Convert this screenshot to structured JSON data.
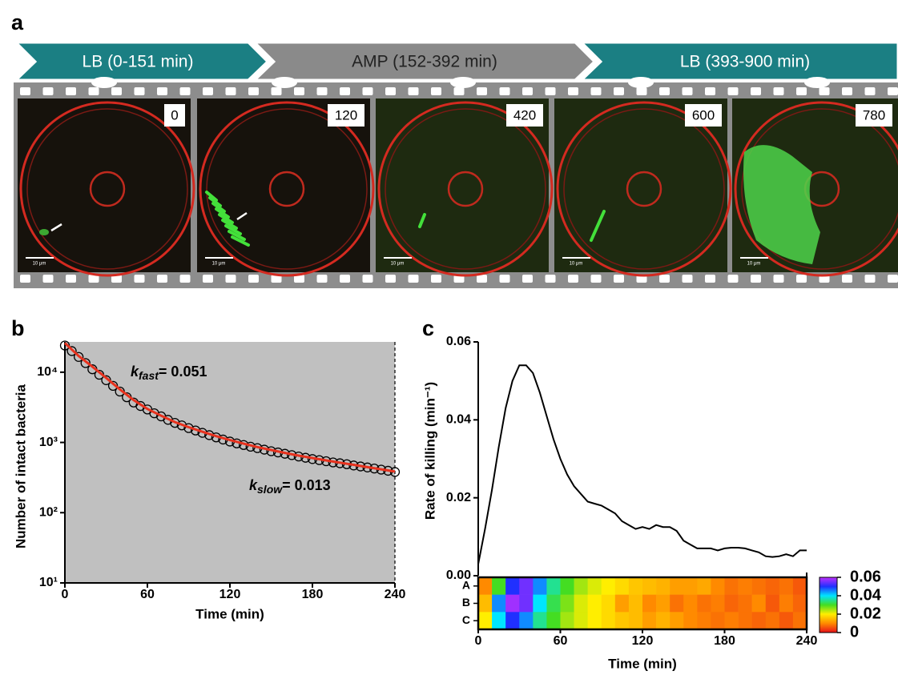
{
  "panel_labels": [
    "a",
    "b",
    "c"
  ],
  "timeline": [
    {
      "label": "LB (0-151 min)",
      "color": "#1b7f83",
      "text_color": "#ffffff"
    },
    {
      "label": "AMP (152-392 min)",
      "color": "#8a8a8a",
      "text_color": "#222222"
    },
    {
      "label": "LB (393-900 min)",
      "color": "#1b7f83",
      "text_color": "#ffffff"
    }
  ],
  "frames": [
    {
      "time": "0",
      "scale_bar": "10 μm"
    },
    {
      "time": "120",
      "scale_bar": "10 μm"
    },
    {
      "time": "420",
      "scale_bar": "10 μm"
    },
    {
      "time": "600",
      "scale_bar": "10 μm"
    },
    {
      "time": "780",
      "scale_bar": "10 μm"
    }
  ],
  "chart_data": [
    {
      "type": "scatter-fit",
      "xlabel": "Time (min)",
      "ylabel": "Number of intact bacteria",
      "xlim": [
        0,
        240
      ],
      "xticks": [
        0,
        60,
        120,
        180,
        240
      ],
      "ylim": [
        10,
        27000
      ],
      "log_y": true,
      "yticks": [
        {
          "value": 10,
          "label": "10¹"
        },
        {
          "value": 100,
          "label": "10²"
        },
        {
          "value": 1000,
          "label": "10³"
        },
        {
          "value": 10000,
          "label": "10⁴"
        }
      ],
      "background": "#c0c0c0",
      "series": [
        {
          "marker": "circle",
          "color": "#000000",
          "x": [
            0,
            5,
            10,
            15,
            20,
            25,
            30,
            35,
            40,
            45,
            50,
            55,
            60,
            65,
            70,
            75,
            80,
            85,
            90,
            95,
            100,
            105,
            110,
            115,
            120,
            125,
            130,
            135,
            140,
            145,
            150,
            155,
            160,
            165,
            170,
            175,
            180,
            185,
            190,
            195,
            200,
            205,
            210,
            215,
            220,
            225,
            230,
            235,
            240
          ],
          "values": [
            24000,
            20000,
            16500,
            13500,
            11000,
            9200,
            7700,
            6400,
            5300,
            4400,
            3700,
            3300,
            2950,
            2600,
            2350,
            2100,
            1900,
            1750,
            1600,
            1480,
            1370,
            1270,
            1180,
            1100,
            1030,
            970,
            920,
            870,
            830,
            790,
            750,
            720,
            690,
            660,
            630,
            605,
            580,
            560,
            540,
            520,
            505,
            490,
            470,
            455,
            440,
            425,
            410,
            395,
            380
          ]
        },
        {
          "marker": "line",
          "color": "#e8321e",
          "x": [
            0,
            10,
            20,
            30,
            40,
            50,
            60,
            70,
            80,
            90,
            100,
            110,
            120,
            130,
            140,
            150,
            160,
            170,
            180,
            190,
            200,
            210,
            220,
            230,
            240
          ],
          "values": [
            26000,
            17000,
            12000,
            8300,
            5700,
            4000,
            3000,
            2400,
            1950,
            1650,
            1420,
            1230,
            1080,
            960,
            860,
            780,
            710,
            650,
            600,
            555,
            515,
            480,
            445,
            415,
            385
          ]
        }
      ],
      "annotations": [
        {
          "symbol": "k",
          "subscript": "fast",
          "text": "= 0.051"
        },
        {
          "symbol": "k",
          "subscript": "slow",
          "text": "= 0.013"
        }
      ]
    },
    {
      "type": "line",
      "ylabel": "Rate of killing (min⁻¹)",
      "color": "#000000",
      "xlim": [
        0,
        240
      ],
      "ylim": [
        0,
        0.06
      ],
      "yticks": [
        {
          "value": 0,
          "label": "0.00"
        },
        0.02,
        0.04,
        0.06
      ],
      "x": [
        0,
        5,
        10,
        15,
        20,
        25,
        30,
        35,
        40,
        45,
        50,
        55,
        60,
        65,
        70,
        75,
        80,
        85,
        90,
        95,
        100,
        105,
        110,
        115,
        120,
        125,
        130,
        135,
        140,
        145,
        150,
        155,
        160,
        165,
        170,
        175,
        180,
        185,
        190,
        195,
        200,
        205,
        210,
        215,
        220,
        225,
        230,
        235,
        240
      ],
      "values": [
        0.003,
        0.012,
        0.022,
        0.033,
        0.043,
        0.05,
        0.054,
        0.054,
        0.052,
        0.047,
        0.041,
        0.035,
        0.03,
        0.026,
        0.023,
        0.021,
        0.019,
        0.0185,
        0.018,
        0.017,
        0.016,
        0.014,
        0.013,
        0.012,
        0.0125,
        0.012,
        0.013,
        0.0125,
        0.0125,
        0.0115,
        0.009,
        0.008,
        0.007,
        0.007,
        0.007,
        0.0065,
        0.007,
        0.0072,
        0.0072,
        0.007,
        0.0065,
        0.006,
        0.005,
        0.0048,
        0.005,
        0.0055,
        0.005,
        0.0065,
        0.0065
      ]
    },
    {
      "type": "heatmap",
      "xlabel": "Time (min)",
      "rows": [
        "A",
        "B",
        "C"
      ],
      "xlim": [
        0,
        240
      ],
      "xticks": [
        0,
        60,
        120,
        180,
        240
      ],
      "bins": [
        0,
        10,
        20,
        30,
        40,
        50,
        60,
        70,
        80,
        90,
        100,
        110,
        120,
        130,
        140,
        150,
        160,
        170,
        180,
        190,
        200,
        210,
        220,
        230,
        240
      ],
      "values": [
        [
          0.01,
          0.03,
          0.05,
          0.055,
          0.045,
          0.035,
          0.03,
          0.025,
          0.022,
          0.02,
          0.018,
          0.016,
          0.015,
          0.014,
          0.012,
          0.012,
          0.013,
          0.01,
          0.008,
          0.009,
          0.008,
          0.007,
          0.008,
          0.006
        ],
        [
          0.015,
          0.045,
          0.058,
          0.055,
          0.04,
          0.032,
          0.027,
          0.022,
          0.02,
          0.018,
          0.012,
          0.015,
          0.01,
          0.012,
          0.008,
          0.01,
          0.008,
          0.009,
          0.007,
          0.008,
          0.01,
          0.006,
          0.009,
          0.007
        ],
        [
          0.02,
          0.04,
          0.05,
          0.045,
          0.035,
          0.03,
          0.025,
          0.022,
          0.02,
          0.018,
          0.016,
          0.015,
          0.012,
          0.014,
          0.012,
          0.01,
          0.009,
          0.008,
          0.009,
          0.008,
          0.007,
          0.008,
          0.006,
          0.008
        ]
      ],
      "zlim": [
        0,
        0.06
      ],
      "zticks": [
        0,
        0.02,
        0.04,
        0.06
      ],
      "colormap": [
        "#e8101a",
        "#ff8a00",
        "#ffee00",
        "#44dd22",
        "#00e5ff",
        "#2030ff",
        "#c030ff"
      ]
    }
  ]
}
